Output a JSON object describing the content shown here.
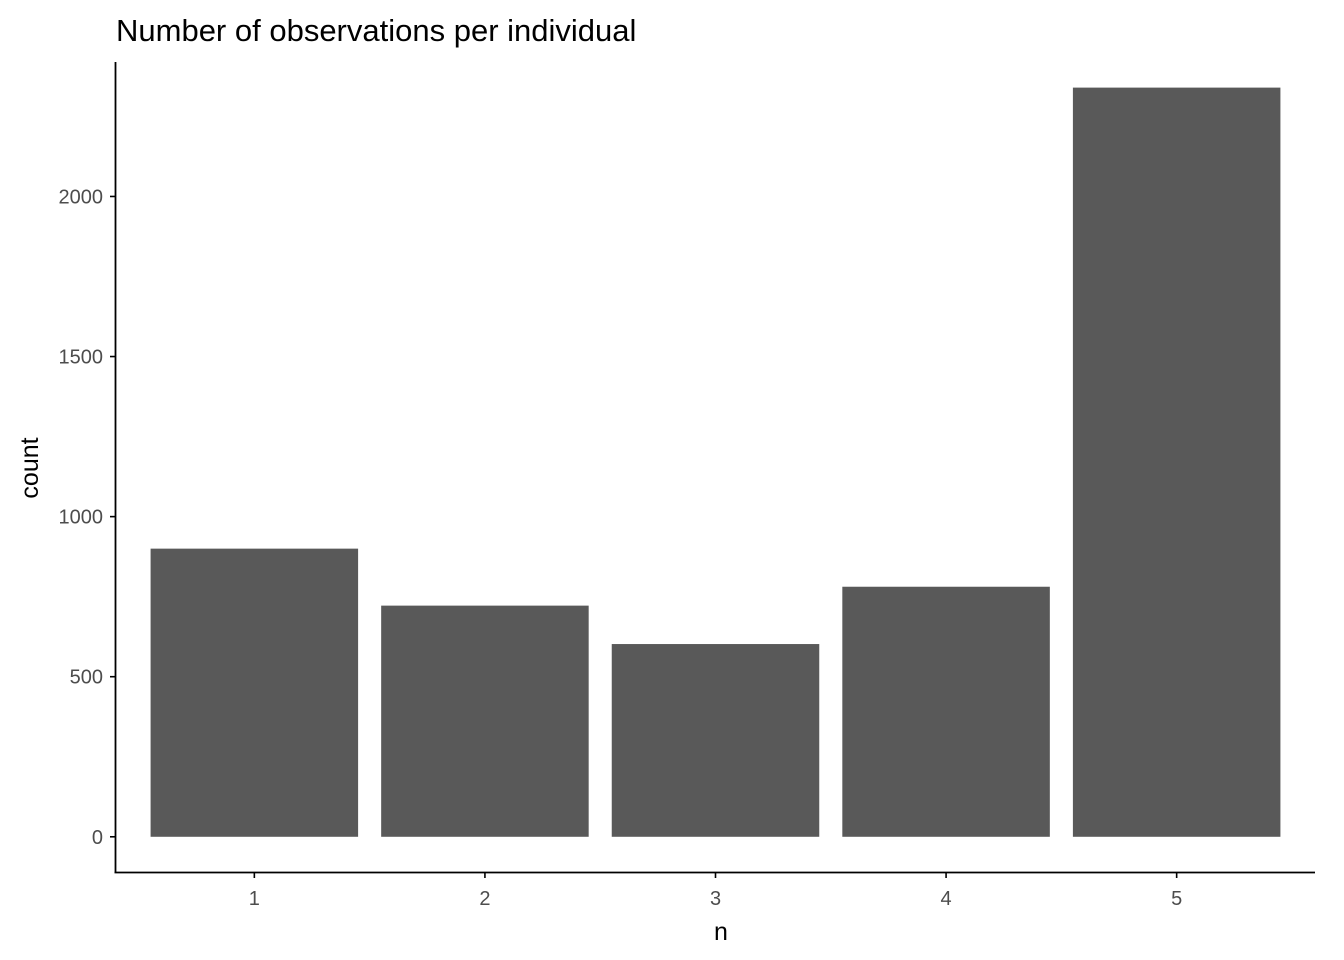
{
  "chart_data": {
    "type": "bar",
    "title": "Number of observations per individual",
    "xlabel": "n",
    "ylabel": "count",
    "categories": [
      "1",
      "2",
      "3",
      "4",
      "5"
    ],
    "values": [
      900,
      722,
      602,
      781,
      2340
    ],
    "ylim": [
      -110,
      2420
    ],
    "yticks": [
      0,
      500,
      1000,
      1500,
      2000
    ],
    "bar_color": "#595959",
    "axis_color": "#000000",
    "tick_label_color": "#4d4d4d",
    "grid": false,
    "legend": "none"
  }
}
